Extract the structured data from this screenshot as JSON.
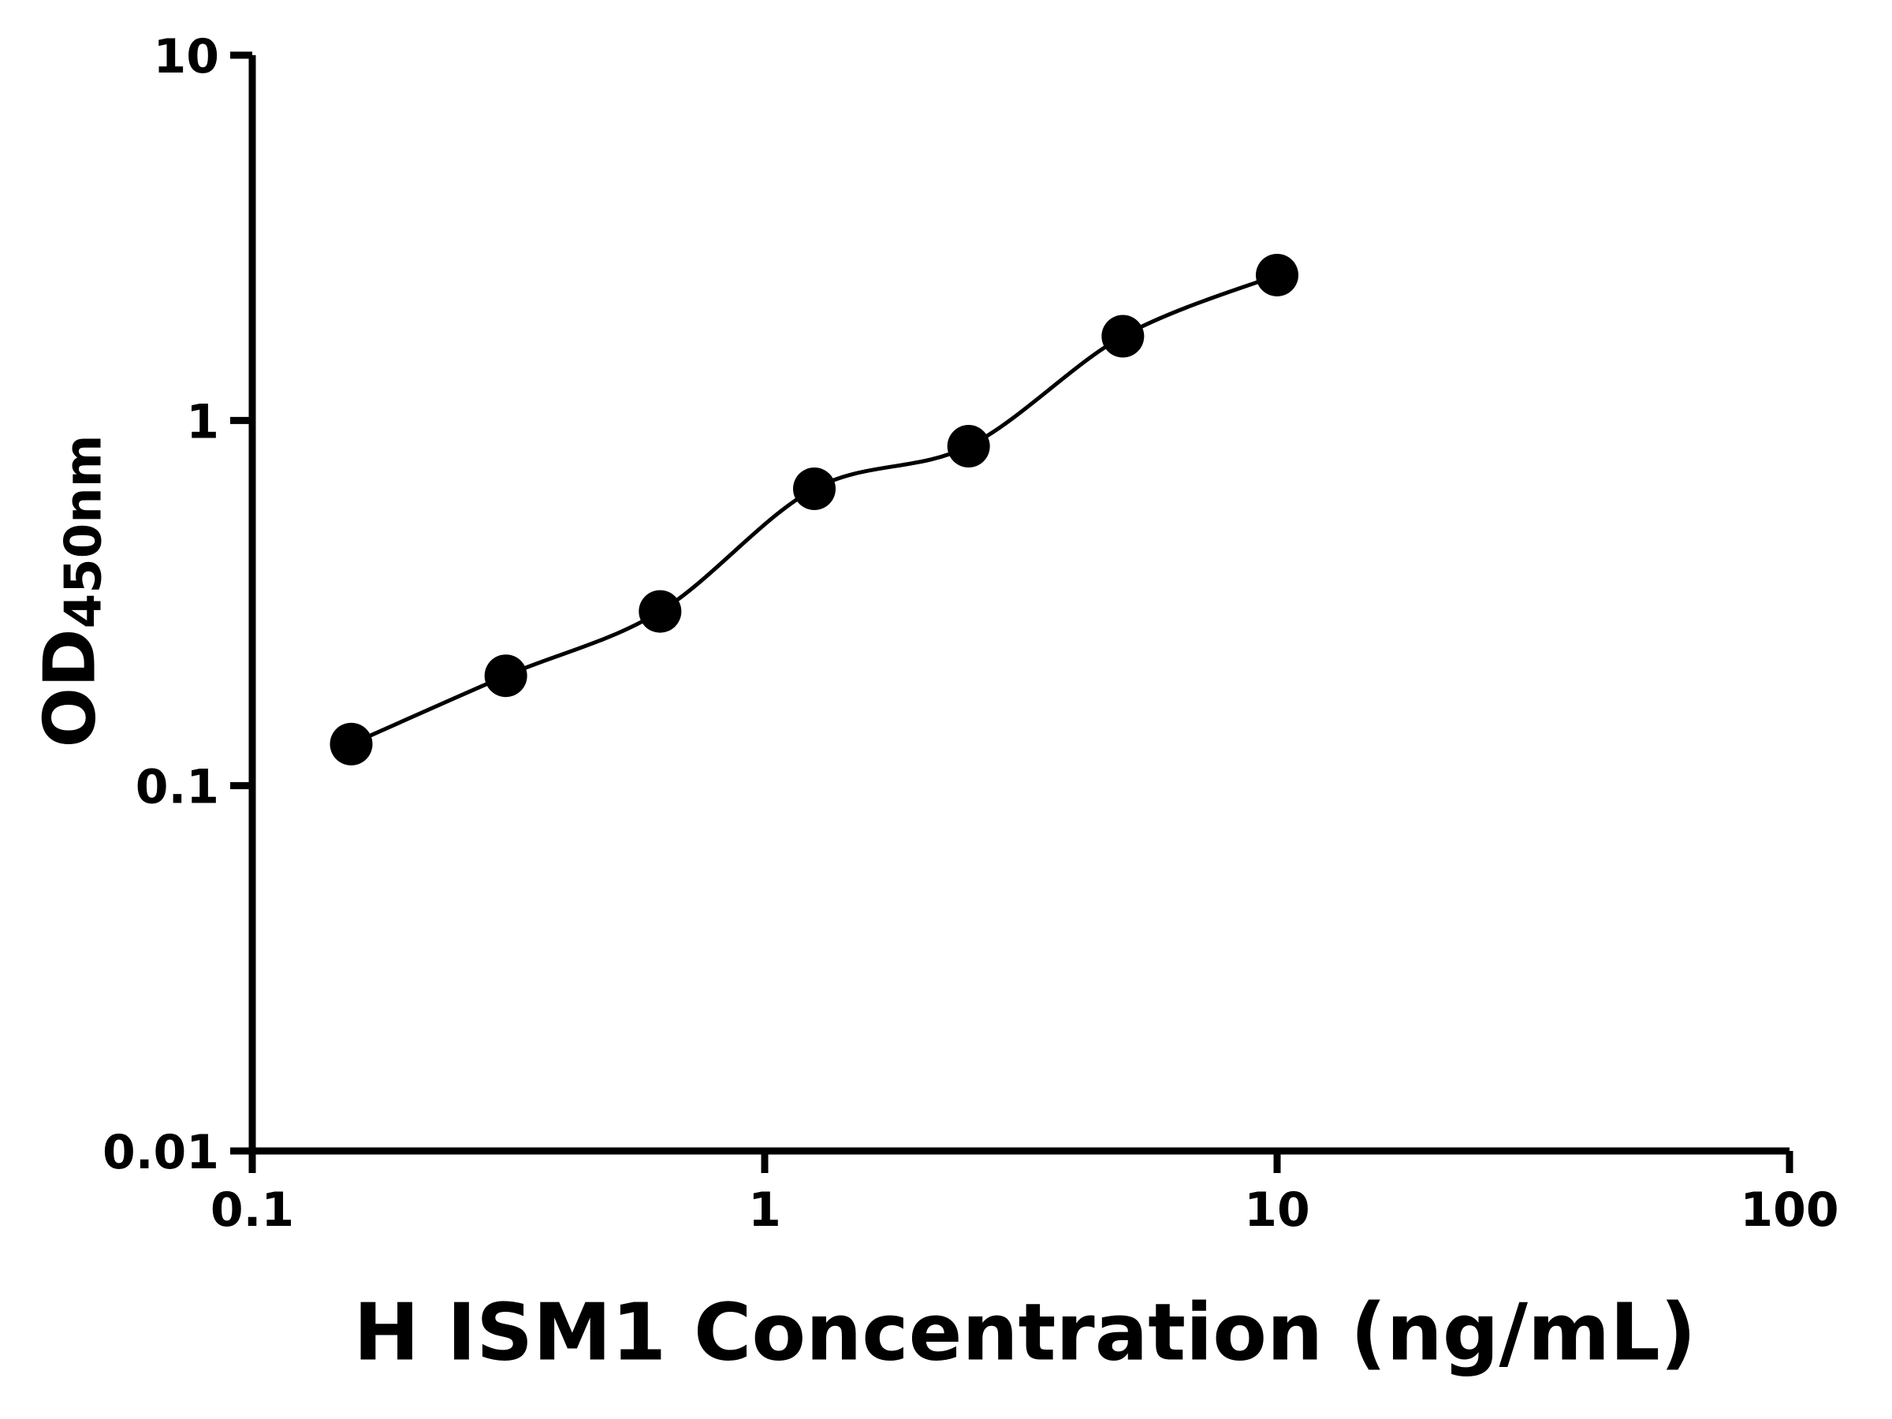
{
  "chart_data": {
    "type": "scatter",
    "subtype": "standard-curve-with-fit-line",
    "title": "",
    "xlabel": "H ISM1 Concentration (ng/mL)",
    "ylabel_main": "OD",
    "ylabel_sub": "450nm",
    "x_scale": "log",
    "y_scale": "log",
    "xlim": [
      0.1,
      100
    ],
    "ylim": [
      0.01,
      10
    ],
    "x_ticks": [
      {
        "value": 0.1,
        "label": "0.1"
      },
      {
        "value": 1,
        "label": "1"
      },
      {
        "value": 10,
        "label": "10"
      },
      {
        "value": 100,
        "label": "100"
      }
    ],
    "y_ticks": [
      {
        "value": 0.01,
        "label": "0.01"
      },
      {
        "value": 0.1,
        "label": "0.1"
      },
      {
        "value": 1,
        "label": "1"
      },
      {
        "value": 10,
        "label": "10"
      }
    ],
    "series": [
      {
        "x": [
          0.156,
          0.3125,
          0.625,
          1.25,
          2.5,
          5,
          10
        ],
        "y": [
          0.13,
          0.2,
          0.3,
          0.65,
          0.85,
          1.7,
          2.5
        ]
      }
    ],
    "grid": "off",
    "legend": "none",
    "marker_color": "#000000",
    "line_color": "#000000",
    "axis_color": "#000000",
    "background": "#ffffff"
  }
}
